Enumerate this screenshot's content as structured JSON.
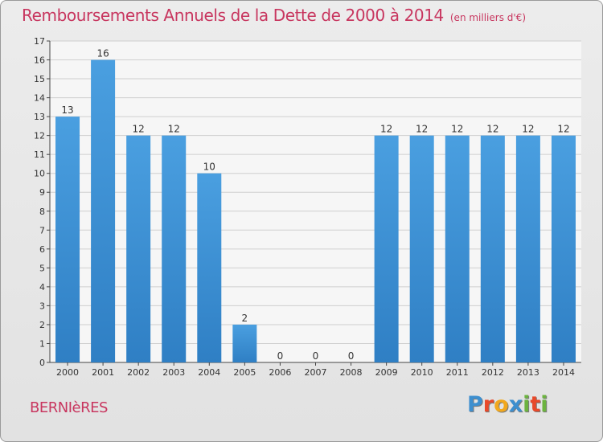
{
  "header": {
    "title": "Remboursements Annuels de la Dette de 2000 à 2014",
    "unit": "(en milliers d'€)"
  },
  "footer": {
    "town": "BERNIèRES",
    "logo_letters": [
      "P",
      "r",
      "o",
      "x",
      "i",
      "t",
      "i"
    ],
    "logo_colors": [
      "#3d8fcf",
      "#e8492a",
      "#f2a81d",
      "#3d8fcf",
      "#6cb33f",
      "#e8492a",
      "#6cb33f"
    ]
  },
  "colors": {
    "bar": "#4a9fe0",
    "bar_dark": "#2f7fc4",
    "title": "#c8365f",
    "plot_bg": "#f6f6f6",
    "grid": "#cfcfcf",
    "axis": "#444444"
  },
  "chart_data": {
    "type": "bar",
    "title": "Remboursements Annuels de la Dette de 2000 à 2014",
    "xlabel": "",
    "ylabel": "",
    "ylim": [
      0,
      17
    ],
    "y_ticks": [
      0,
      1,
      2,
      3,
      4,
      5,
      6,
      7,
      8,
      9,
      10,
      11,
      12,
      13,
      14,
      15,
      16,
      17
    ],
    "grid": true,
    "categories": [
      "2000",
      "2001",
      "2002",
      "2003",
      "2004",
      "2005",
      "2006",
      "2007",
      "2008",
      "2009",
      "2010",
      "2011",
      "2012",
      "2013",
      "2014"
    ],
    "values": [
      13,
      16,
      12,
      12,
      10,
      2,
      0,
      0,
      0,
      12,
      12,
      12,
      12,
      12,
      12
    ],
    "data_labels": [
      "13",
      "16",
      "12",
      "12",
      "10",
      "2",
      "0",
      "0",
      "0",
      "12",
      "12",
      "12",
      "12",
      "12",
      "12"
    ]
  }
}
